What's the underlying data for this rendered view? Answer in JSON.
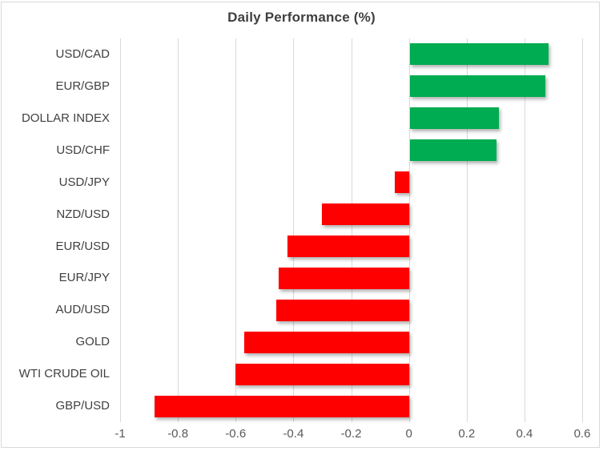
{
  "chart_data": {
    "type": "bar",
    "orientation": "horizontal",
    "title": "Daily Performance (%)",
    "categories": [
      "USD/CAD",
      "EUR/GBP",
      "DOLLAR INDEX",
      "USD/CHF",
      "USD/JPY",
      "NZD/USD",
      "EUR/USD",
      "EUR/JPY",
      "AUD/USD",
      "GOLD",
      "WTI CRUDE OIL",
      "GBP/USD"
    ],
    "values": [
      0.48,
      0.47,
      0.31,
      0.3,
      -0.05,
      -0.3,
      -0.42,
      -0.45,
      -0.46,
      -0.57,
      -0.6,
      -0.88
    ],
    "xlim": [
      -1,
      0.6
    ],
    "x_ticks": [
      -1,
      -0.8,
      -0.6,
      -0.4,
      -0.2,
      0,
      0.2,
      0.4,
      0.6
    ],
    "x_tick_labels": [
      "-1",
      "-0.8",
      "-0.6",
      "-0.4",
      "-0.2",
      "0",
      "0.2",
      "0.4",
      "0.6"
    ],
    "grid": "vertical-on",
    "legend": "none",
    "xlabel": "",
    "ylabel": "",
    "colors": {
      "positive": "#00ac52",
      "negative": "#ff0000",
      "gridline": "#d9d9d9",
      "border": "#d9d9d9",
      "title": "#3f3f3f",
      "category_label": "#404040",
      "tick_label": "#595959",
      "background": "#ffffff"
    }
  }
}
